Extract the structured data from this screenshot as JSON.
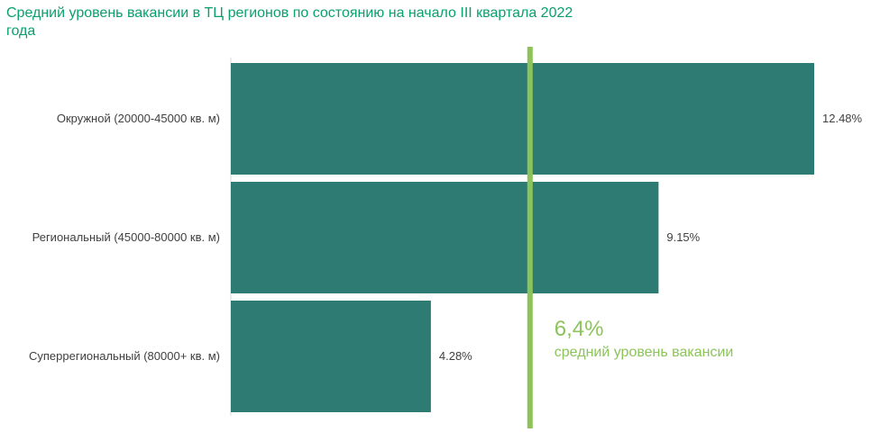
{
  "chart_data": {
    "type": "bar",
    "orientation": "horizontal",
    "title": "Средний уровень вакансии в ТЦ регионов по состоянию на начало III квартала 2022 года",
    "categories": [
      "Окружной (20000-45000 кв. м)",
      "Региональный (45000-80000 кв. м)",
      "Суперрегиональный (80000+ кв. м)"
    ],
    "values": [
      12.48,
      9.15,
      4.28
    ],
    "value_labels": [
      "12.48%",
      "9.15%",
      "4.28%"
    ],
    "xlim": [
      0,
      12.48
    ],
    "grid": false,
    "reference_line": {
      "value": 6.4,
      "label_value": "6,4%",
      "label_text": "средний уровень вакансии"
    },
    "colors": {
      "bar": "#2e7b73",
      "reference_line": "#8cc45a",
      "title": "#0aa06e"
    }
  }
}
